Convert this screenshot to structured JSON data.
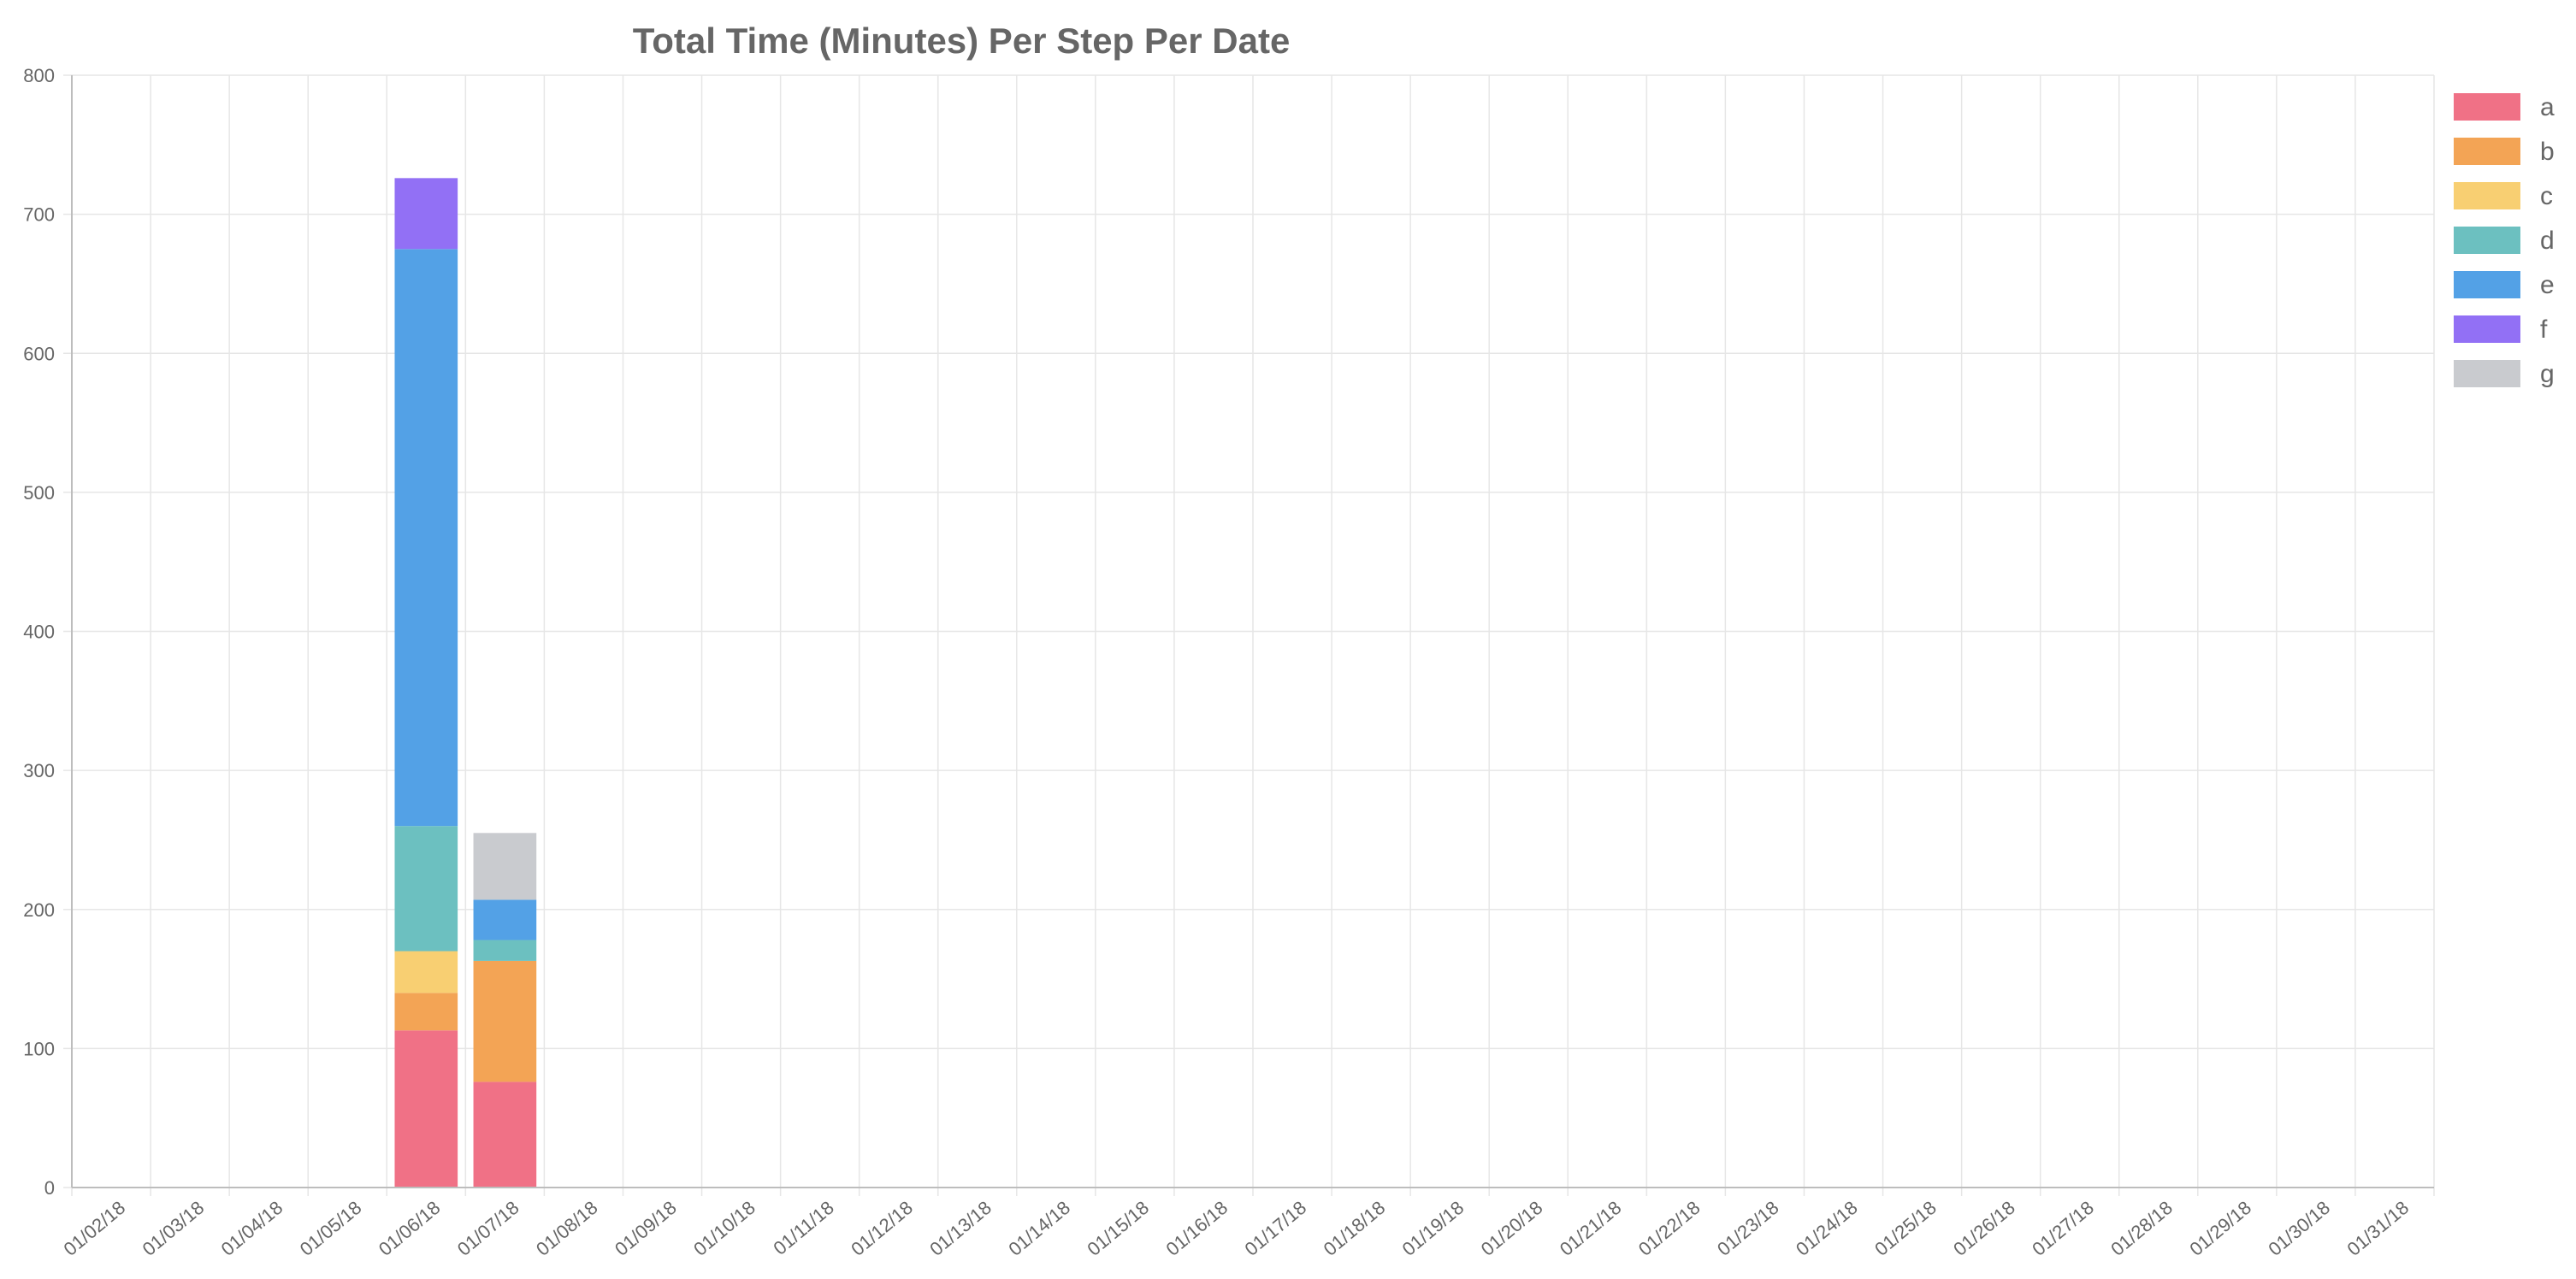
{
  "chart_data": {
    "type": "bar",
    "stacked": true,
    "title": "Total Time (Minutes) Per Step Per Date",
    "xlabel": "",
    "ylabel": "",
    "categories": [
      "01/02/18",
      "01/03/18",
      "01/04/18",
      "01/05/18",
      "01/06/18",
      "01/07/18",
      "01/08/18",
      "01/09/18",
      "01/10/18",
      "01/11/18",
      "01/12/18",
      "01/13/18",
      "01/14/18",
      "01/15/18",
      "01/16/18",
      "01/17/18",
      "01/18/18",
      "01/19/18",
      "01/20/18",
      "01/21/18",
      "01/22/18",
      "01/23/18",
      "01/24/18",
      "01/25/18",
      "01/26/18",
      "01/27/18",
      "01/28/18",
      "01/29/18",
      "01/30/18",
      "01/31/18"
    ],
    "ylim": [
      0,
      800
    ],
    "yticks": [
      0,
      100,
      200,
      300,
      400,
      500,
      600,
      700,
      800
    ],
    "grid": true,
    "legend_position": "right",
    "series": [
      {
        "name": "a",
        "color": "#f07186",
        "values": [
          0,
          0,
          0,
          0,
          113,
          76,
          0,
          0,
          0,
          0,
          0,
          0,
          0,
          0,
          0,
          0,
          0,
          0,
          0,
          0,
          0,
          0,
          0,
          0,
          0,
          0,
          0,
          0,
          0,
          0
        ]
      },
      {
        "name": "b",
        "color": "#f3a455",
        "values": [
          0,
          0,
          0,
          0,
          27,
          87,
          0,
          0,
          0,
          0,
          0,
          0,
          0,
          0,
          0,
          0,
          0,
          0,
          0,
          0,
          0,
          0,
          0,
          0,
          0,
          0,
          0,
          0,
          0,
          0
        ]
      },
      {
        "name": "c",
        "color": "#f8cf72",
        "values": [
          0,
          0,
          0,
          0,
          30,
          0,
          0,
          0,
          0,
          0,
          0,
          0,
          0,
          0,
          0,
          0,
          0,
          0,
          0,
          0,
          0,
          0,
          0,
          0,
          0,
          0,
          0,
          0,
          0,
          0
        ]
      },
      {
        "name": "d",
        "color": "#6cc0c0",
        "values": [
          0,
          0,
          0,
          0,
          90,
          15,
          0,
          0,
          0,
          0,
          0,
          0,
          0,
          0,
          0,
          0,
          0,
          0,
          0,
          0,
          0,
          0,
          0,
          0,
          0,
          0,
          0,
          0,
          0,
          0
        ]
      },
      {
        "name": "e",
        "color": "#53a1e6",
        "values": [
          0,
          0,
          0,
          0,
          415,
          29,
          0,
          0,
          0,
          0,
          0,
          0,
          0,
          0,
          0,
          0,
          0,
          0,
          0,
          0,
          0,
          0,
          0,
          0,
          0,
          0,
          0,
          0,
          0,
          0
        ]
      },
      {
        "name": "f",
        "color": "#9270f5",
        "values": [
          0,
          0,
          0,
          0,
          51,
          0,
          0,
          0,
          0,
          0,
          0,
          0,
          0,
          0,
          0,
          0,
          0,
          0,
          0,
          0,
          0,
          0,
          0,
          0,
          0,
          0,
          0,
          0,
          0,
          0
        ]
      },
      {
        "name": "g",
        "color": "#c9cbcf",
        "values": [
          0,
          0,
          0,
          0,
          0,
          48,
          0,
          0,
          0,
          0,
          0,
          0,
          0,
          0,
          0,
          0,
          0,
          0,
          0,
          0,
          0,
          0,
          0,
          0,
          0,
          0,
          0,
          0,
          0,
          0
        ]
      }
    ]
  }
}
